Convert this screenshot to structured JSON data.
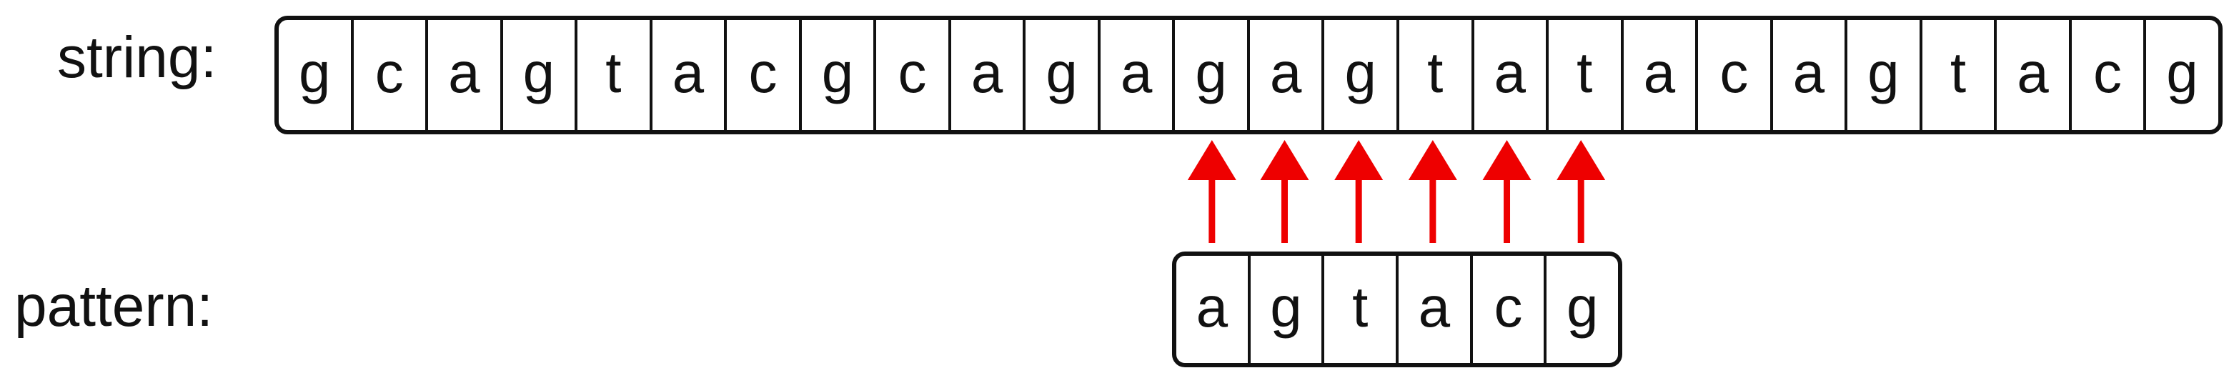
{
  "string": {
    "label": "string:",
    "chars": [
      "g",
      "c",
      "a",
      "g",
      "t",
      "a",
      "c",
      "g",
      "c",
      "a",
      "g",
      "a",
      "g",
      "a",
      "g",
      "t",
      "a",
      "t",
      "a",
      "c",
      "a",
      "g",
      "t",
      "a",
      "c",
      "g"
    ]
  },
  "pattern": {
    "label": "pattern:",
    "chars": [
      "a",
      "g",
      "t",
      "a",
      "c",
      "g"
    ]
  },
  "alignment": {
    "pattern_start_index": 12,
    "arrow_color": "#ee0000"
  }
}
